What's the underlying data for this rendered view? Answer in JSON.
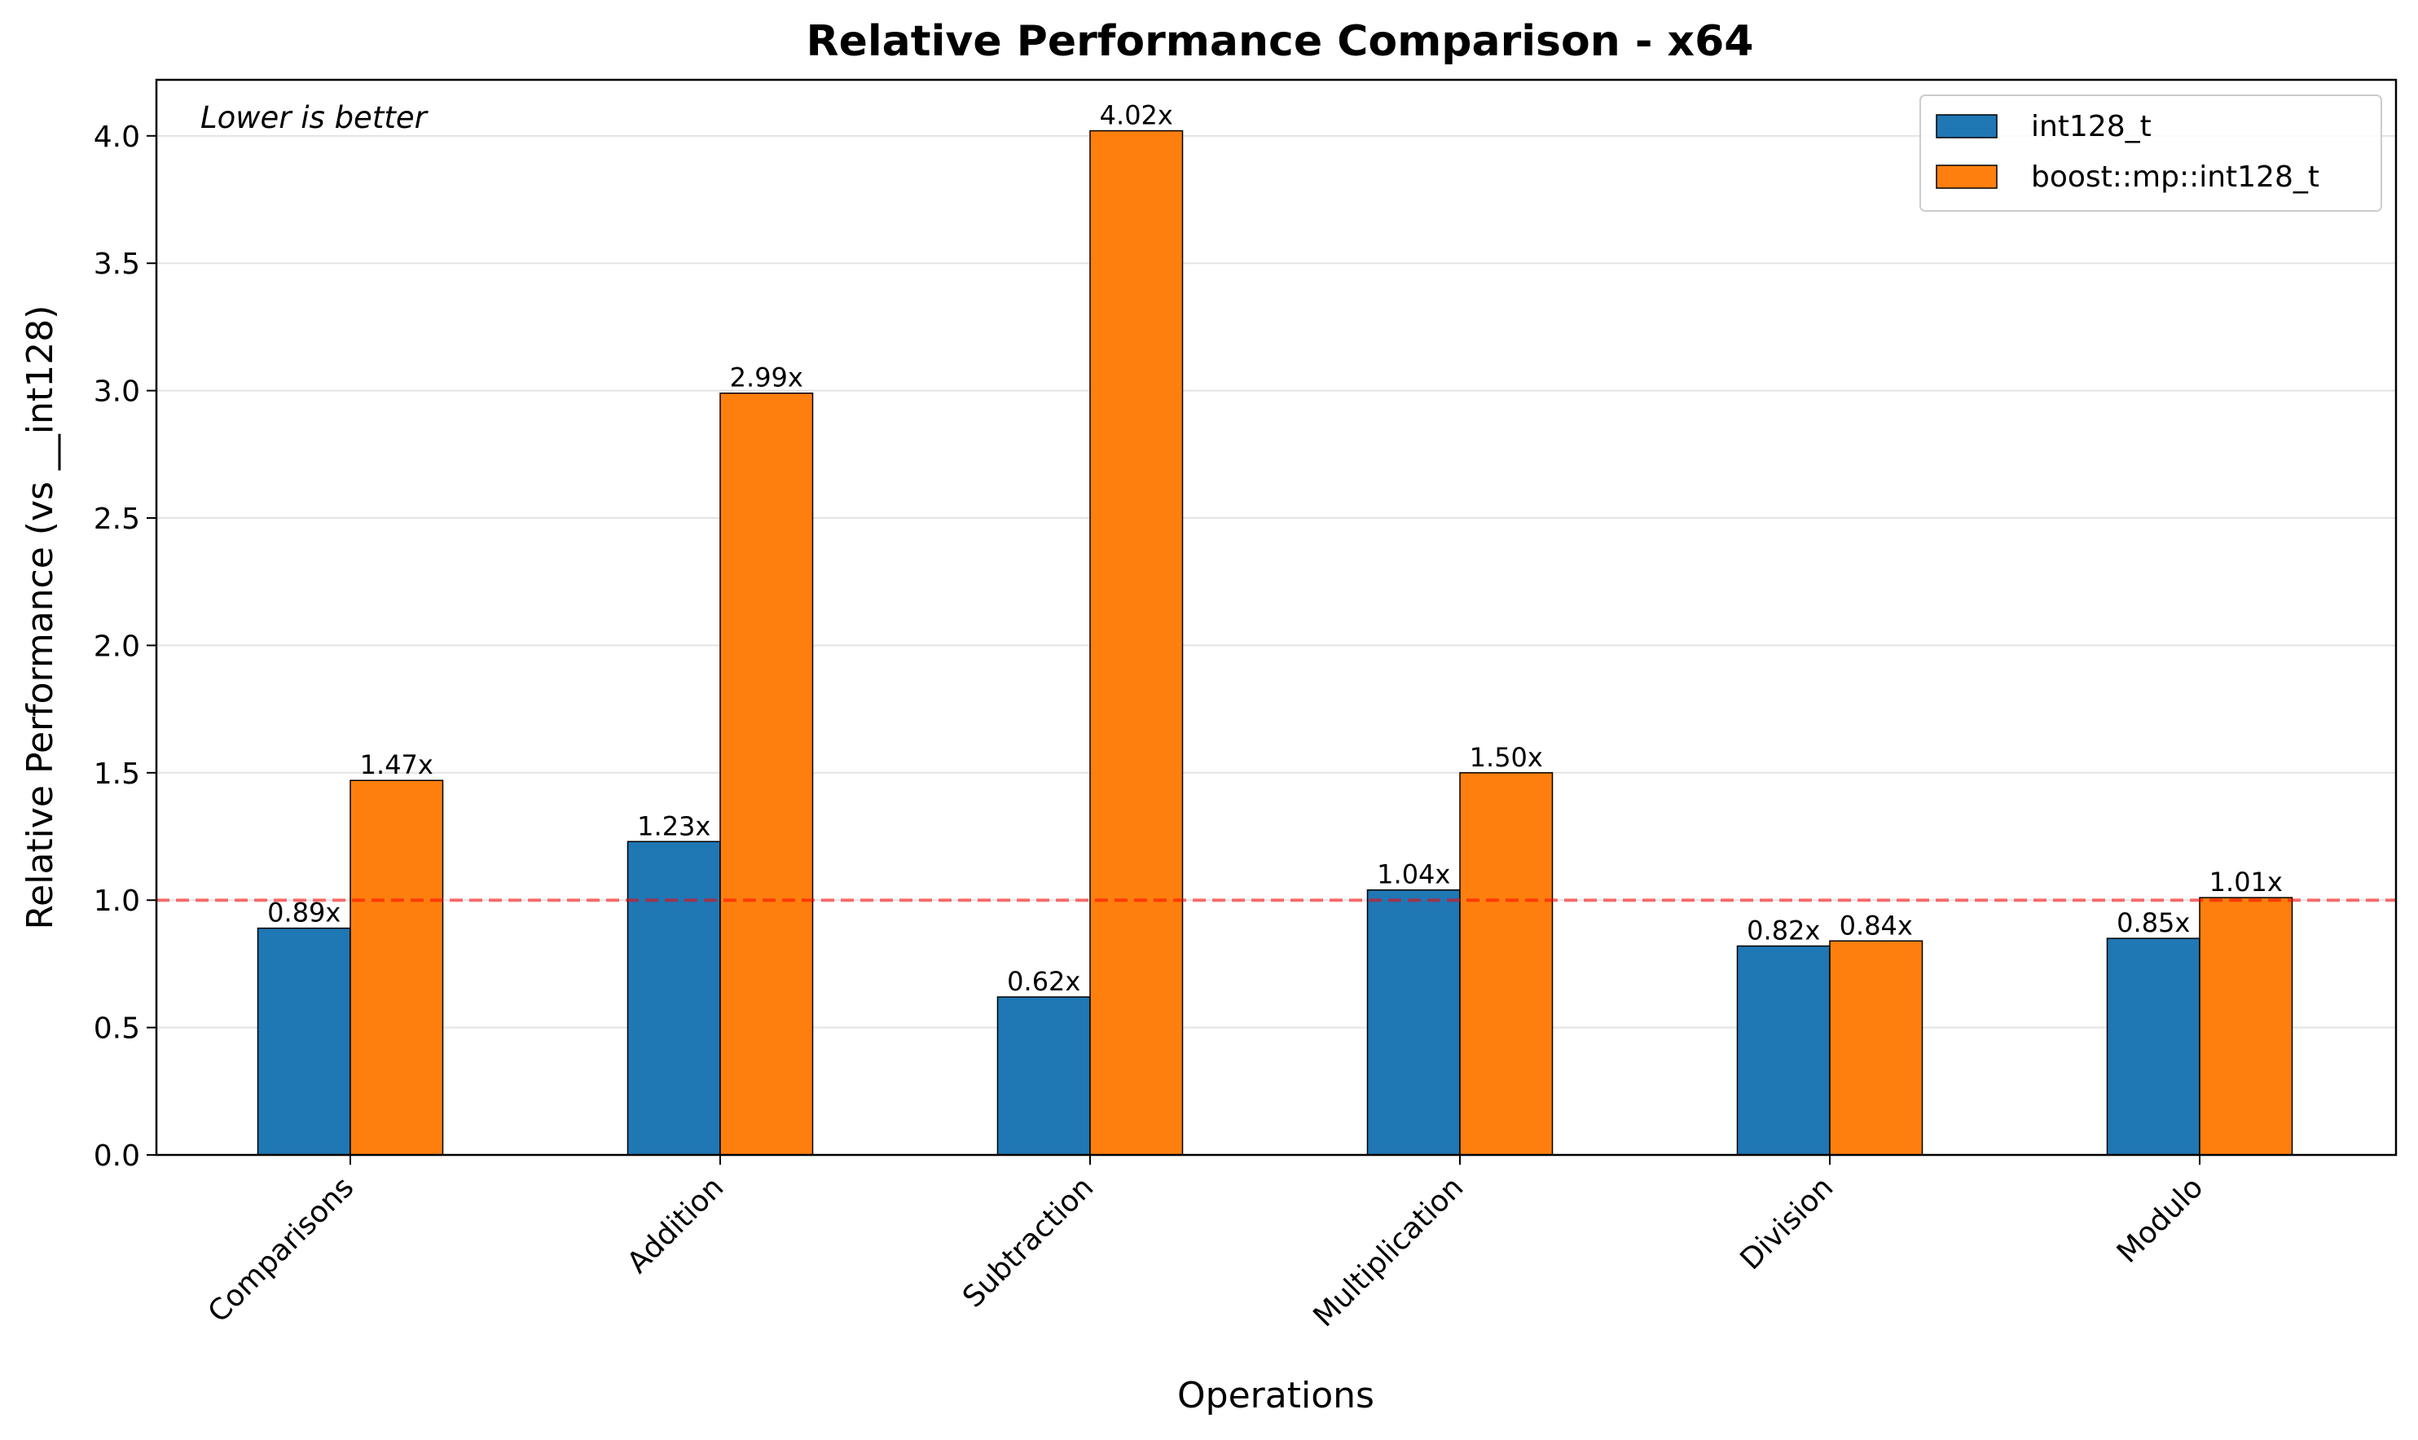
{
  "chart_data": {
    "type": "bar",
    "title": "Relative Performance Comparison - x64",
    "xlabel": "Operations",
    "ylabel": "Relative Performance (vs __int128)",
    "annotation": "Lower is better",
    "categories": [
      "Comparisons",
      "Addition",
      "Subtraction",
      "Multiplication",
      "Division",
      "Modulo"
    ],
    "series": [
      {
        "name": "int128_t",
        "color": "#1f77b4",
        "values": [
          0.89,
          1.23,
          0.62,
          1.04,
          0.82,
          0.85
        ],
        "labels": [
          "0.89x",
          "1.23x",
          "0.62x",
          "1.04x",
          "0.82x",
          "0.85x"
        ]
      },
      {
        "name": "boost::mp::int128_t",
        "color": "#ff7f0e",
        "values": [
          1.47,
          2.99,
          4.02,
          1.5,
          0.84,
          1.01
        ],
        "labels": [
          "1.47x",
          "2.99x",
          "4.02x",
          "1.50x",
          "0.84x",
          "1.01x"
        ]
      }
    ],
    "ylim": [
      0,
      4.22
    ],
    "yticks": [
      "0.0",
      "0.5",
      "1.0",
      "1.5",
      "2.0",
      "2.5",
      "3.0",
      "3.5",
      "4.0"
    ],
    "reference_line": {
      "value": 1.0,
      "color": "#ff0000",
      "style": "dashed"
    },
    "grid": "horizontal",
    "legend_position": "top-right"
  }
}
